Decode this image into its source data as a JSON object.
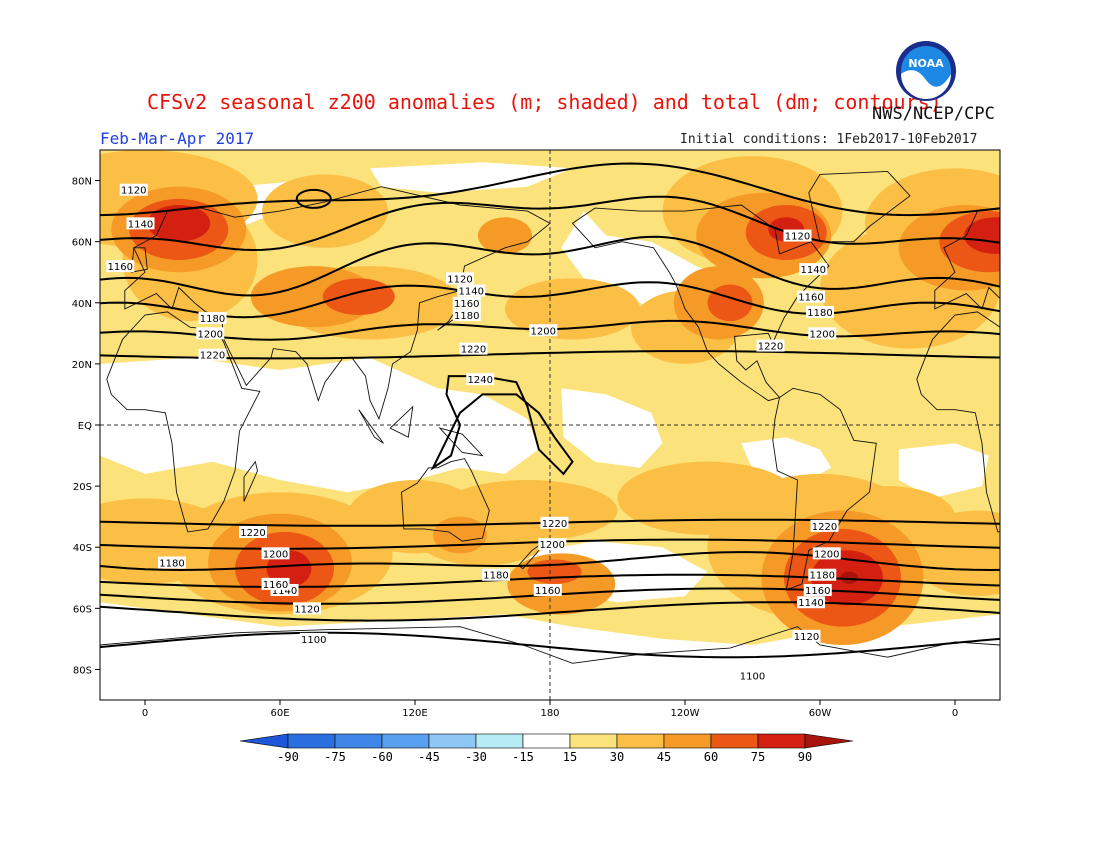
{
  "header": {
    "title": "CFSv2 seasonal z200 anomalies (m; shaded) and total (dm; contours)",
    "agency": "NWS/NCEP/CPC",
    "period": "Feb-Mar-Apr 2017",
    "initial_conditions": "Initial conditions: 1Feb2017-10Feb2017",
    "logo_text": "NOAA"
  },
  "map": {
    "projection": "cylindrical equidistant",
    "lon_range": [
      -20,
      380
    ],
    "lat_range": [
      -90,
      90
    ],
    "lat_labels": [
      "80N",
      "60N",
      "40N",
      "20N",
      "EQ",
      "20S",
      "40S",
      "60S",
      "80S"
    ],
    "lat_values": [
      80,
      60,
      40,
      20,
      0,
      -20,
      -40,
      -60,
      -80
    ],
    "lon_labels": [
      "0",
      "60E",
      "120E",
      "180",
      "120W",
      "60W",
      "0"
    ],
    "lon_values": [
      0,
      60,
      120,
      180,
      240,
      300,
      360
    ],
    "colors": {
      "c15_30": "#fbe27a",
      "c30_45": "#fbbf45",
      "c45_60": "#f59a27",
      "c60_75": "#ec5716",
      "c75_90": "#d42010",
      "c90": "#a6140c",
      "coast": "#111111",
      "contour": "#000000"
    },
    "contours": [
      {
        "label": "1100",
        "label_positions": [
          [
            75,
            -70
          ],
          [
            270,
            -82
          ]
        ]
      },
      {
        "label": "1120",
        "label_positions": [
          [
            -5,
            77
          ],
          [
            140,
            48
          ],
          [
            290,
            62
          ],
          [
            72,
            -60
          ],
          [
            294,
            -69
          ]
        ]
      },
      {
        "label": "1140",
        "label_positions": [
          [
            -2,
            66
          ],
          [
            145,
            44
          ],
          [
            297,
            51
          ],
          [
            62,
            -54
          ],
          [
            296,
            -58
          ]
        ]
      },
      {
        "label": "1160",
        "label_positions": [
          [
            -11,
            52
          ],
          [
            143,
            40
          ],
          [
            296,
            42
          ],
          [
            58,
            -52
          ],
          [
            179,
            -54
          ],
          [
            299,
            -54
          ]
        ]
      },
      {
        "label": "1180",
        "label_positions": [
          [
            30,
            35
          ],
          [
            143,
            36
          ],
          [
            300,
            37
          ],
          [
            12,
            -45
          ],
          [
            156,
            -49
          ],
          [
            301,
            -49
          ]
        ]
      },
      {
        "label": "1200",
        "label_positions": [
          [
            29,
            30
          ],
          [
            177,
            31
          ],
          [
            301,
            30
          ],
          [
            58,
            -42
          ],
          [
            181,
            -39
          ],
          [
            303,
            -42
          ]
        ]
      },
      {
        "label": "1220",
        "label_positions": [
          [
            30,
            23
          ],
          [
            146,
            25
          ],
          [
            278,
            26
          ],
          [
            48,
            -35
          ],
          [
            182,
            -32
          ],
          [
            302,
            -33
          ]
        ]
      },
      {
        "label": "1240",
        "label_positions": [
          [
            149,
            15
          ]
        ]
      }
    ]
  },
  "colorbar": {
    "labels": [
      "-90",
      "-75",
      "-60",
      "-45",
      "-30",
      "-15",
      "15",
      "30",
      "45",
      "60",
      "75",
      "90"
    ],
    "colors": [
      "#1e58d8",
      "#2a6fe0",
      "#3f86e8",
      "#5aa0f0",
      "#8ec6f4",
      "#b8ecf4",
      "#ffffff",
      "#fbe27a",
      "#fbbf45",
      "#f59a27",
      "#ec5716",
      "#d42010",
      "#a6140c"
    ]
  }
}
